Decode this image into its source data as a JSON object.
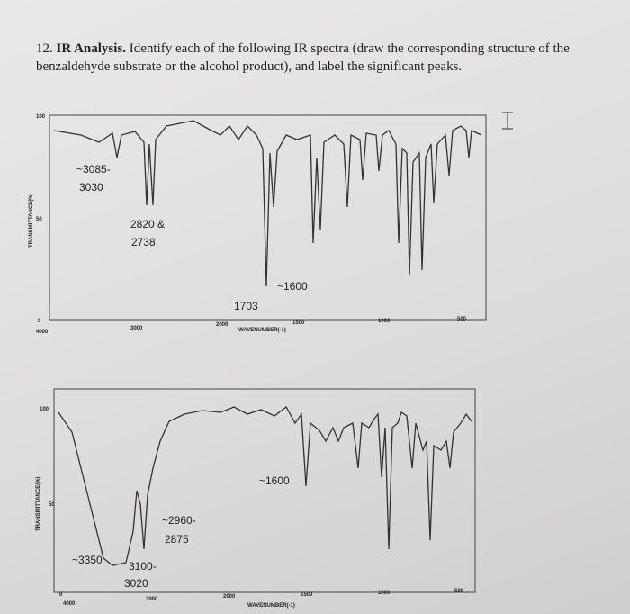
{
  "question": {
    "number": "12.",
    "heading": "IR Analysis.",
    "text": "Identify each of the following IR spectra (draw the corresponding structure of the benzaldehyde substrate or the alcohol product), and label the significant peaks."
  },
  "spectra": [
    {
      "annotations": [
        "~3085-",
        "3030",
        "2820 &",
        "2738",
        "~1600",
        "1703"
      ],
      "y_axis_label": "TRANSMITTANCE(%)",
      "y_ticks": [
        "100",
        "50",
        "0"
      ],
      "x_ticks": [
        "4000",
        "3000",
        "2000",
        "1500",
        "1000",
        "500"
      ],
      "x_axis_label": "WAVENUMBER(-1)"
    },
    {
      "annotations": [
        "~1600",
        "~2960-",
        "2875",
        "~3350",
        "3100-",
        "3020"
      ],
      "y_axis_label": "TRANSMITTANCE(%)",
      "y_ticks": [
        "100",
        "50",
        "0"
      ],
      "x_ticks": [
        "4000",
        "3000",
        "2000",
        "1500",
        "1000",
        "500"
      ],
      "x_axis_label": "WAVENUMBER(-1)"
    }
  ]
}
